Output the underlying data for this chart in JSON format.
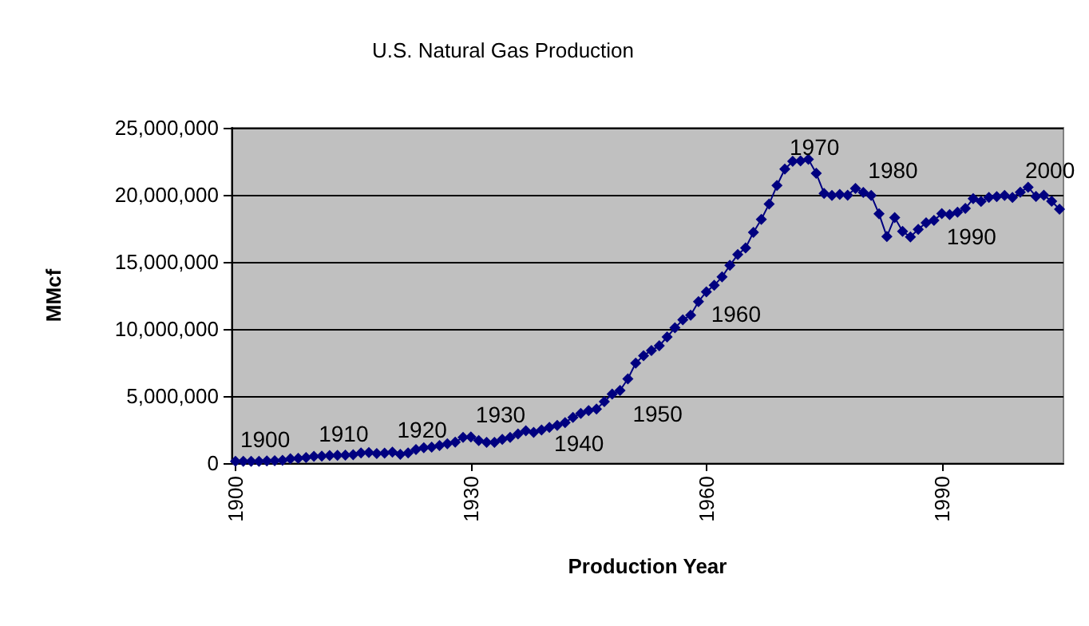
{
  "chart_data": {
    "type": "line",
    "title": "U.S. Natural Gas Production",
    "xlabel": "Production Year",
    "ylabel": "MMcf",
    "x": [
      1900,
      1901,
      1902,
      1903,
      1904,
      1905,
      1906,
      1907,
      1908,
      1909,
      1910,
      1911,
      1912,
      1913,
      1914,
      1915,
      1916,
      1917,
      1918,
      1919,
      1920,
      1921,
      1922,
      1923,
      1924,
      1925,
      1926,
      1927,
      1928,
      1929,
      1930,
      1931,
      1932,
      1933,
      1934,
      1935,
      1936,
      1937,
      1938,
      1939,
      1940,
      1941,
      1942,
      1943,
      1944,
      1945,
      1946,
      1947,
      1948,
      1949,
      1950,
      1951,
      1952,
      1953,
      1954,
      1955,
      1956,
      1957,
      1958,
      1959,
      1960,
      1961,
      1962,
      1963,
      1964,
      1965,
      1966,
      1967,
      1968,
      1969,
      1970,
      1971,
      1972,
      1973,
      1974,
      1975,
      1976,
      1977,
      1978,
      1979,
      1980,
      1981,
      1982,
      1983,
      1984,
      1985,
      1986,
      1987,
      1988,
      1989,
      1990,
      1991,
      1992,
      1993,
      1994,
      1995,
      1996,
      1997,
      1998,
      1999,
      2000,
      2001,
      2002,
      2003,
      2004,
      2005
    ],
    "series": [
      {
        "color": "#000080",
        "values": [
          128000,
          129000,
          133000,
          139000,
          158000,
          175000,
          202000,
          333000,
          352000,
          410000,
          509000,
          514000,
          562000,
          582000,
          592000,
          629000,
          753000,
          795000,
          721000,
          746000,
          812000,
          662000,
          763000,
          1007000,
          1142000,
          1188000,
          1313000,
          1445000,
          1568000,
          1917000,
          1943000,
          1686000,
          1555000,
          1548000,
          1771000,
          1917000,
          2168000,
          2407000,
          2296000,
          2477000,
          2660000,
          2812000,
          3025000,
          3415000,
          3711000,
          3919000,
          4031000,
          4583000,
          5148000,
          5420000,
          6282000,
          7457000,
          8013000,
          8397000,
          8743000,
          9405000,
          10082000,
          10680000,
          11030000,
          12046000,
          12771000,
          13254000,
          13877000,
          14747000,
          15547000,
          16040000,
          17207000,
          18171000,
          19322000,
          20698000,
          21921000,
          22493000,
          22532000,
          22648000,
          21601000,
          20109000,
          19952000,
          20025000,
          19974000,
          20471000,
          20180000,
          19956000,
          18582000,
          16884000,
          18304000,
          17270000,
          16859000,
          17433000,
          17918000,
          18095000,
          18594000,
          18532000,
          18712000,
          18982000,
          19710000,
          19506000,
          19812000,
          19866000,
          19961000,
          19805000,
          20198000,
          20570000,
          19885000,
          19974000,
          19517000,
          18927000
        ]
      }
    ],
    "xlim": [
      1899.5,
      2005.5
    ],
    "xticks": [
      1900,
      1930,
      1960,
      1990
    ],
    "ylim": [
      0,
      25000000
    ],
    "yticks": [
      {
        "value": 0,
        "label": "0"
      },
      {
        "value": 5000000,
        "label": "5,000,000"
      },
      {
        "value": 10000000,
        "label": "10,000,000"
      },
      {
        "value": 15000000,
        "label": "15,000,000"
      },
      {
        "value": 20000000,
        "label": "20,000,000"
      },
      {
        "value": 25000000,
        "label": "25,000,000"
      }
    ],
    "annotations": [
      {
        "text": "1900",
        "x": 1900,
        "y": 128000
      },
      {
        "text": "1910",
        "x": 1910,
        "y": 509000
      },
      {
        "text": "1920",
        "x": 1920,
        "y": 812000
      },
      {
        "text": "1930",
        "x": 1930,
        "y": 1943000
      },
      {
        "text": "1940",
        "x": 1940,
        "y": 2660000
      },
      {
        "text": "1950",
        "x": 1950,
        "y": 6282000
      },
      {
        "text": "1960",
        "x": 1960,
        "y": 12771000
      },
      {
        "text": "1970",
        "x": 1970,
        "y": 21921000
      },
      {
        "text": "1980",
        "x": 1980,
        "y": 20180000
      },
      {
        "text": "1990",
        "x": 1990,
        "y": 18594000
      },
      {
        "text": "2000",
        "x": 2000,
        "y": 20198000
      }
    ],
    "grid": "y",
    "marker": "diamond",
    "line_style": "solid"
  }
}
